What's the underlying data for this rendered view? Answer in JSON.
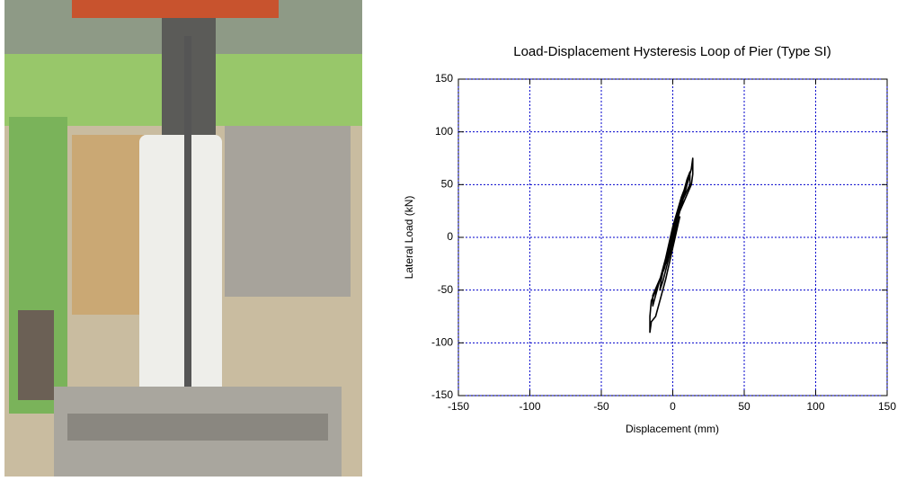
{
  "chart_data": {
    "type": "line",
    "title": "Load-Displacement Hysteresis Loop of Pier (Type SI)",
    "x_label": "Displacement (mm)",
    "y_label": "Lateral Load (kN)",
    "x": [
      0,
      2,
      4,
      3,
      0,
      -2,
      -4,
      -3,
      0,
      4,
      7,
      8,
      6,
      0,
      -5,
      -8,
      -9,
      -7,
      0,
      7,
      10,
      12,
      12,
      5,
      0,
      -8,
      -12,
      -14,
      -14,
      -6,
      0,
      10,
      13,
      14,
      14,
      13,
      5,
      0,
      -10,
      -15,
      -16,
      -16,
      -15,
      -12,
      -5,
      0,
      5
    ],
    "values": [
      0,
      10,
      25,
      20,
      5,
      -10,
      -25,
      -20,
      0,
      25,
      40,
      45,
      38,
      10,
      -20,
      -40,
      -50,
      -42,
      -5,
      40,
      55,
      62,
      50,
      30,
      5,
      -35,
      -55,
      -65,
      -55,
      -30,
      0,
      50,
      65,
      75,
      60,
      50,
      25,
      0,
      -45,
      -60,
      -75,
      -90,
      -80,
      -75,
      -40,
      -10,
      20
    ],
    "color": "#000000",
    "grid_color": "#0000cc",
    "grid": true,
    "xlim": [
      -150,
      150
    ],
    "xticks": [
      -150,
      -100,
      -50,
      0,
      50,
      100,
      150
    ],
    "ylim": [
      -150,
      150
    ],
    "yticks": [
      -150,
      -100,
      -50,
      0,
      50,
      100,
      150
    ]
  }
}
